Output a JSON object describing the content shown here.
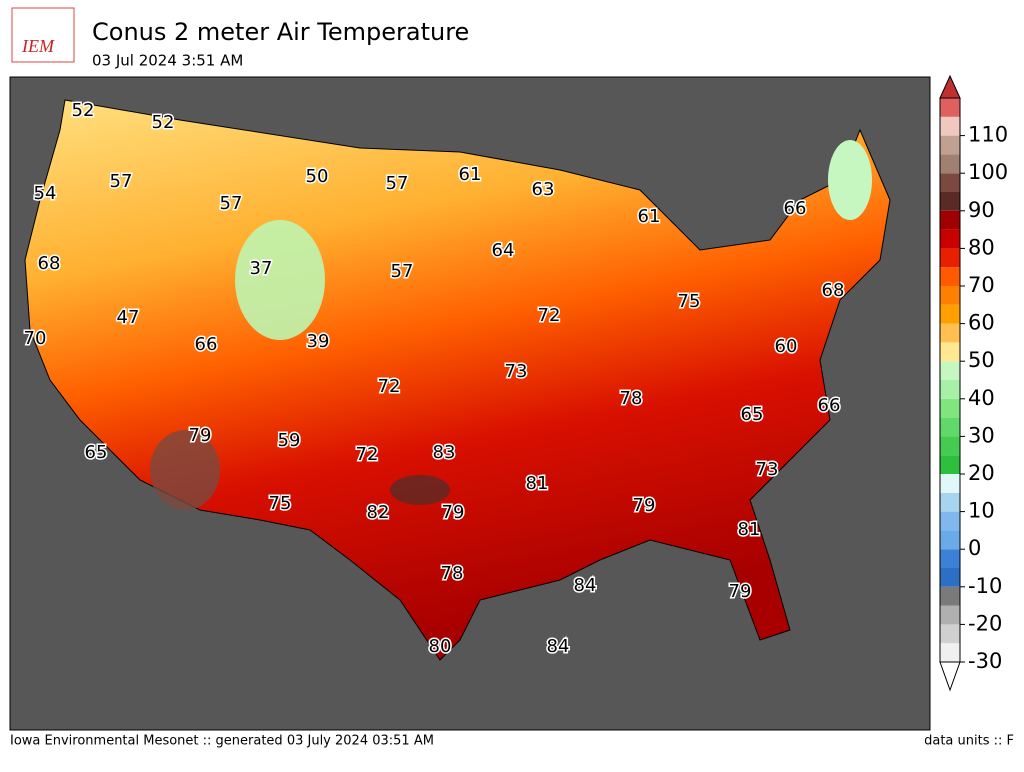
{
  "logo_text": "IEM",
  "title": "Conus 2 meter Air Temperature",
  "subtitle": "03 Jul 2024 3:51 AM",
  "footer_left": "Iowa Environmental Mesonet :: generated 03 July 2024 03:51 AM",
  "footer_right": "data units :: F",
  "labels": [
    52,
    52,
    54,
    57,
    57,
    50,
    57,
    61,
    63,
    61,
    66,
    68,
    37,
    57,
    64,
    47,
    66,
    39,
    72,
    75,
    68,
    70,
    60,
    73,
    72,
    78,
    65,
    66,
    79,
    59,
    72,
    83,
    73,
    65,
    81,
    79,
    75,
    82,
    79,
    81,
    78,
    84,
    79,
    80,
    84
  ],
  "colorbar": {
    "lim": [
      -30,
      120
    ],
    "ticks": [
      -30,
      -20,
      -10,
      0,
      10,
      20,
      30,
      40,
      50,
      60,
      70,
      80,
      90,
      100,
      110
    ],
    "colors": [
      "#f0f0f0",
      "#d0d0d0",
      "#b0b0b0",
      "#7a7a7a",
      "#2c6fc4",
      "#3b82d6",
      "#6aaae8",
      "#80b8ee",
      "#a9d4f0",
      "#e0f8fa",
      "#2fbf3f",
      "#45cc50",
      "#60d86a",
      "#80e47f",
      "#a8f0a8",
      "#c7f7c0",
      "#ffe890",
      "#ffc050",
      "#ffa000",
      "#ff8000",
      "#ff5a00",
      "#e82000",
      "#c80000",
      "#a00000",
      "#5a2a26",
      "#7a4a40",
      "#a08070",
      "#c0a090",
      "#f0c8c0",
      "#e06060"
    ]
  }
}
